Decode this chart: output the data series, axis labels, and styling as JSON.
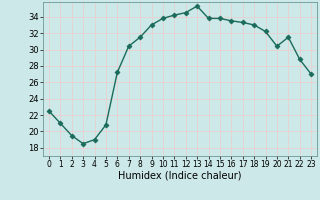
{
  "x": [
    0,
    1,
    2,
    3,
    4,
    5,
    6,
    7,
    8,
    9,
    10,
    11,
    12,
    13,
    14,
    15,
    16,
    17,
    18,
    19,
    20,
    21,
    22,
    23
  ],
  "y": [
    22.5,
    21.0,
    19.5,
    18.5,
    19.0,
    20.8,
    27.2,
    30.4,
    31.5,
    33.0,
    33.8,
    34.2,
    34.5,
    35.3,
    33.8,
    33.8,
    33.5,
    33.3,
    33.0,
    32.2,
    30.4,
    31.5,
    28.8,
    27.0
  ],
  "line_color": "#1a6b5a",
  "marker": "D",
  "markersize": 2.5,
  "bg_color": "#cce8e8",
  "grid_color": "#e8d0d0",
  "xlabel": "Humidex (Indice chaleur)",
  "ylim": [
    17,
    35.8
  ],
  "xlim": [
    -0.5,
    23.5
  ],
  "yticks": [
    18,
    20,
    22,
    24,
    26,
    28,
    30,
    32,
    34
  ],
  "xticks": [
    0,
    1,
    2,
    3,
    4,
    5,
    6,
    7,
    8,
    9,
    10,
    11,
    12,
    13,
    14,
    15,
    16,
    17,
    18,
    19,
    20,
    21,
    22,
    23
  ]
}
